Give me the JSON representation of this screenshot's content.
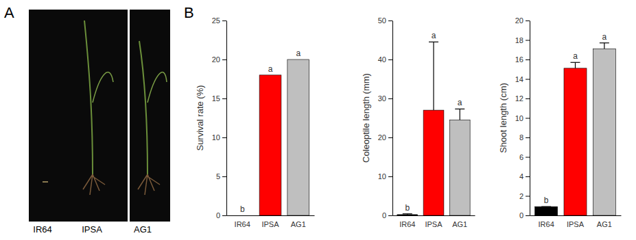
{
  "panel_labels": [
    "A",
    "B"
  ],
  "photo": {
    "labels": [
      "IR64",
      "IPSA",
      "AG1"
    ]
  },
  "chart_data": [
    {
      "type": "bar",
      "ylabel": "Survival rate (%)",
      "categories": [
        "IR64",
        "IPSA",
        "AG1"
      ],
      "values": [
        0,
        18,
        20
      ],
      "colors": [
        "#000000",
        "#ff0000",
        "#bfbfbf"
      ],
      "annotations": [
        "b",
        "a",
        "a"
      ],
      "ylim": [
        0,
        25
      ],
      "yticks": [
        0,
        5,
        10,
        15,
        20,
        25
      ]
    },
    {
      "type": "bar",
      "ylabel": "Coleoptile length (mm)",
      "categories": [
        "IR64",
        "IPSA",
        "AG1"
      ],
      "values": [
        0.2,
        27,
        24.5
      ],
      "errors": [
        0.2,
        17.5,
        2.8
      ],
      "colors": [
        "#000000",
        "#ff0000",
        "#bfbfbf"
      ],
      "annotations": [
        "b",
        "a",
        "a"
      ],
      "ylim": [
        0,
        50
      ],
      "yticks": [
        0,
        10,
        20,
        30,
        40,
        50
      ]
    },
    {
      "type": "bar",
      "ylabel": "Shoot length (cm)",
      "categories": [
        "IR64",
        "IPSA",
        "AG1"
      ],
      "values": [
        0.9,
        15.1,
        17.1
      ],
      "errors": [
        0,
        0.6,
        0.6
      ],
      "colors": [
        "#000000",
        "#ff0000",
        "#bfbfbf"
      ],
      "annotations": [
        "b",
        "a",
        "a"
      ],
      "ylim": [
        0,
        20
      ],
      "yticks": [
        0,
        2,
        4,
        6,
        8,
        10,
        12,
        14,
        16,
        18,
        20
      ]
    }
  ]
}
